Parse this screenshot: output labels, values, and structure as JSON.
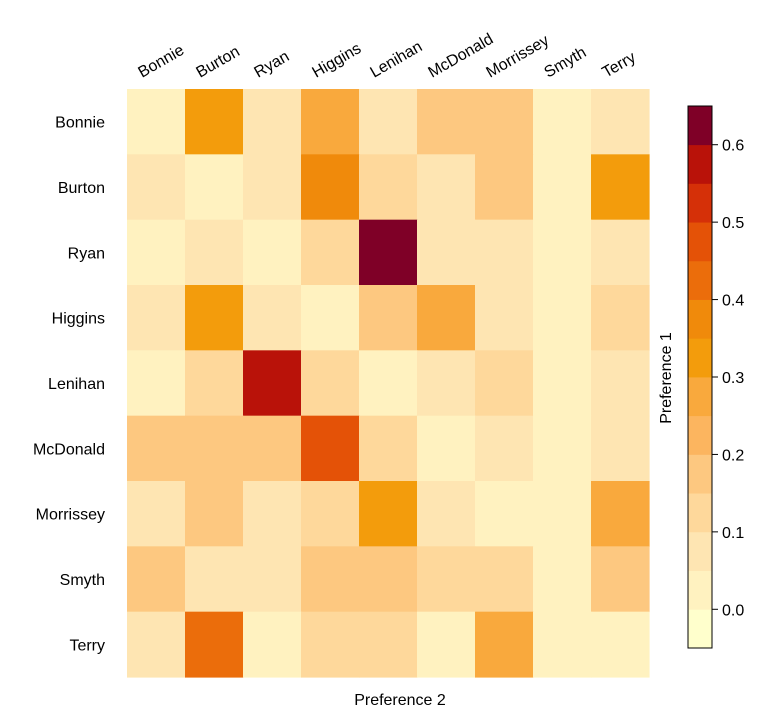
{
  "chart_data": {
    "type": "heatmap",
    "rows": [
      "Bonnie",
      "Burton",
      "Ryan",
      "Higgins",
      "Lenihan",
      "McDonald",
      "Morrissey",
      "Smyth",
      "Terry"
    ],
    "columns": [
      "Bonnie",
      "Burton",
      "Ryan",
      "Higgins",
      "Lenihan",
      "McDonald",
      "Morrissey",
      "Smyth",
      "Terry"
    ],
    "values": [
      [
        0.0,
        0.3,
        0.05,
        0.25,
        0.05,
        0.15,
        0.15,
        0.0,
        0.05
      ],
      [
        0.05,
        0.0,
        0.05,
        0.35,
        0.1,
        0.05,
        0.15,
        0.0,
        0.3
      ],
      [
        0.0,
        0.05,
        0.0,
        0.1,
        0.65,
        0.05,
        0.05,
        0.0,
        0.05
      ],
      [
        0.05,
        0.3,
        0.05,
        0.0,
        0.15,
        0.25,
        0.05,
        0.0,
        0.1
      ],
      [
        0.0,
        0.1,
        0.55,
        0.1,
        0.0,
        0.05,
        0.1,
        0.0,
        0.05
      ],
      [
        0.15,
        0.15,
        0.15,
        0.45,
        0.1,
        0.0,
        0.05,
        0.0,
        0.05
      ],
      [
        0.05,
        0.15,
        0.05,
        0.1,
        0.3,
        0.05,
        0.0,
        0.0,
        0.25
      ],
      [
        0.15,
        0.05,
        0.05,
        0.15,
        0.15,
        0.1,
        0.1,
        0.0,
        0.15
      ],
      [
        0.05,
        0.4,
        0.0,
        0.1,
        0.1,
        0.0,
        0.25,
        0.0,
        0.0
      ]
    ],
    "xlabel": "Preference 2",
    "ylabel": "Preference 1",
    "colorbar": {
      "min": 0.0,
      "max": 0.65,
      "breaks": [
        -0.05,
        0.0,
        0.05,
        0.1,
        0.15,
        0.2,
        0.25,
        0.3,
        0.35,
        0.4,
        0.45,
        0.5,
        0.55,
        0.6,
        0.65
      ],
      "ticks": [
        "0.0",
        "0.1",
        "0.2",
        "0.3",
        "0.4",
        "0.5",
        "0.6"
      ],
      "tick_values": [
        0.0,
        0.1,
        0.2,
        0.3,
        0.4,
        0.5,
        0.6
      ],
      "colors": [
        "#ffffcc",
        "#fff2c0",
        "#fee5b2",
        "#fed89b",
        "#fdc880",
        "#fcb55f",
        "#f9a93d",
        "#f39c0c",
        "#f08a0b",
        "#eb6d0b",
        "#e45207",
        "#d53008",
        "#b91209",
        "#7f0027"
      ]
    }
  }
}
